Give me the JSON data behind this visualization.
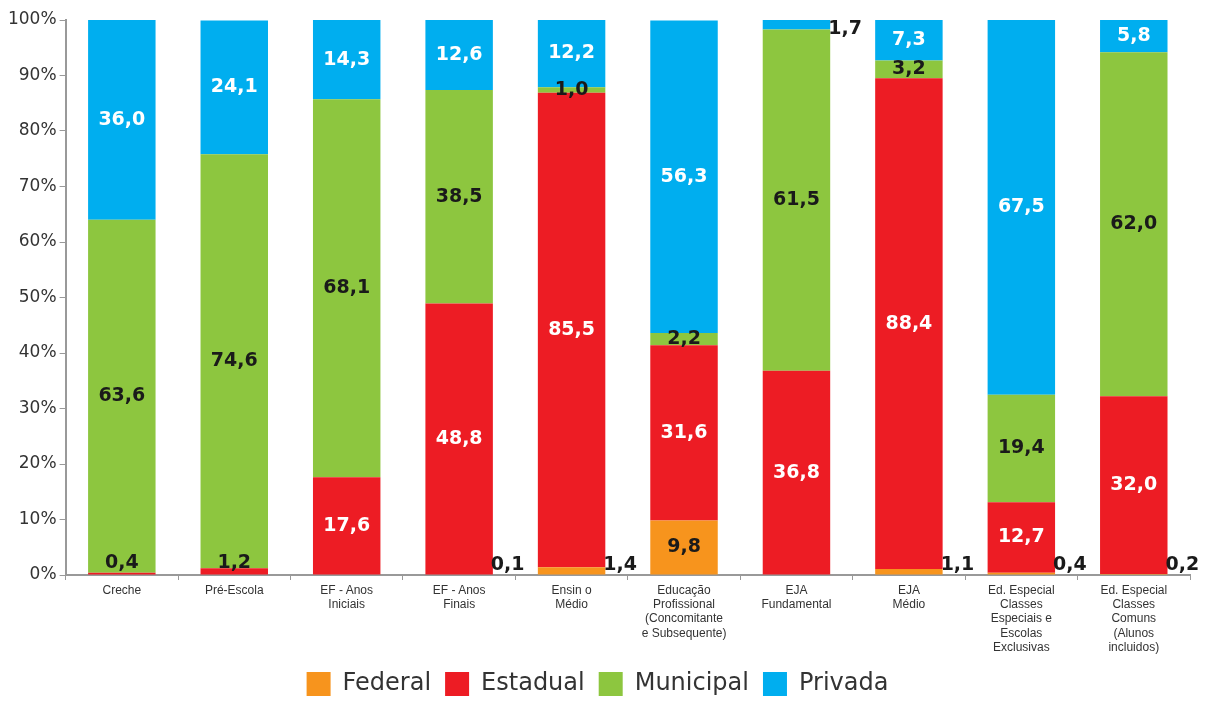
{
  "chart_data": {
    "type": "bar",
    "stacked": true,
    "grid": false,
    "legend": "bottom",
    "categories": [
      "Creche",
      "Pré-Escola",
      "EF - Anos\nIniciais",
      "EF - Anos\nFinais",
      "Ensin o\nMédio",
      "Educação\nProfissional\n(Concomitante\ne Subsequente)",
      "EJA\nFundamental",
      "EJA\nMédio",
      "Ed. Especial\nClasses\nEspeciais e\nEscolas\nExclusivas",
      "Ed. Especial\nClasses\nComuns\n(Alunos\nincluidos)"
    ],
    "ylim": [
      0,
      100
    ],
    "yticks": [
      {
        "value": 0,
        "label": "0%"
      },
      {
        "value": 10,
        "label": "10%"
      },
      {
        "value": 20,
        "label": "20%"
      },
      {
        "value": 30,
        "label": "30%"
      },
      {
        "value": 40,
        "label": "40%"
      },
      {
        "value": 50,
        "label": "50%"
      },
      {
        "value": 60,
        "label": "60%"
      },
      {
        "value": 70,
        "label": "70%"
      },
      {
        "value": 80,
        "label": "80%"
      },
      {
        "value": 90,
        "label": "90%"
      },
      {
        "value": 100,
        "label": "100%"
      }
    ],
    "series": [
      {
        "name": "Federal",
        "color": "#f7941d",
        "values": [
          0,
          0,
          0,
          0.1,
          1.4,
          9.8,
          0,
          1.1,
          0.4,
          0.2
        ],
        "value_labels": [
          null,
          null,
          null,
          "0,1",
          "1,4",
          "9,8",
          null,
          "1,1",
          "0,4",
          "0,2"
        ]
      },
      {
        "name": "Estadual",
        "color": "#ed1c24",
        "values": [
          0.4,
          1.2,
          17.6,
          48.8,
          85.5,
          31.6,
          36.8,
          88.4,
          12.7,
          32.0
        ],
        "value_labels": [
          "0,4",
          "1,2",
          "17,6",
          "48,8",
          "85,5",
          "31,6",
          "36,8",
          "88,4",
          "12,7",
          "32,0"
        ]
      },
      {
        "name": "Municipal",
        "color": "#8dc63f",
        "values": [
          63.6,
          74.6,
          68.1,
          38.5,
          1.0,
          2.2,
          61.5,
          3.2,
          19.4,
          62.0
        ],
        "value_labels": [
          "63,6",
          "74,6",
          "68,1",
          "38,5",
          "1,0",
          "2,2",
          "61,5",
          "3,2",
          "19,4",
          "62,0"
        ]
      },
      {
        "name": "Privada",
        "color": "#00aeef",
        "values": [
          36.0,
          24.1,
          14.3,
          12.6,
          12.2,
          56.3,
          1.7,
          7.3,
          67.5,
          5.8
        ],
        "value_labels": [
          "36,0",
          "24,1",
          "14,3",
          "12,6",
          "12,2",
          "56,3",
          "1,7",
          "7,3",
          "67,5",
          "5,8"
        ]
      }
    ]
  }
}
